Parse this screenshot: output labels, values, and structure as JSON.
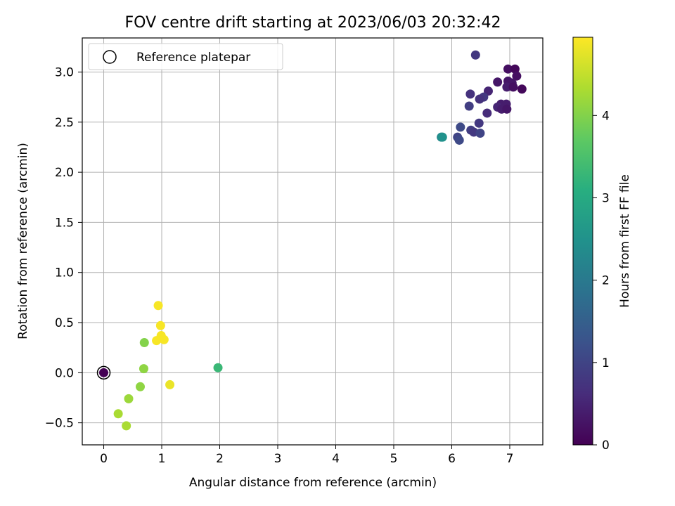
{
  "chart_data": {
    "type": "scatter",
    "title": "FOV centre drift starting at 2023/06/03 20:32:42",
    "xlabel": "Angular distance from reference (arcmin)",
    "ylabel": "Rotation from reference (arcmin)",
    "xlim": [
      -0.37,
      7.57
    ],
    "ylim": [
      -0.72,
      3.34
    ],
    "xticks": [
      0,
      1,
      2,
      3,
      4,
      5,
      6,
      7
    ],
    "xtick_labels": [
      "0",
      "1",
      "2",
      "3",
      "4",
      "5",
      "6",
      "7"
    ],
    "yticks": [
      -0.5,
      0.0,
      0.5,
      1.0,
      1.5,
      2.0,
      2.5,
      3.0
    ],
    "ytick_labels": [
      "−0.5",
      "0.0",
      "0.5",
      "1.0",
      "1.5",
      "2.0",
      "2.5",
      "3.0"
    ],
    "grid": true,
    "legend": {
      "placement": "top-left",
      "label": "Reference platepar"
    },
    "reference_point": {
      "x": 0,
      "y": 0
    },
    "colorbar": {
      "label": "Hours from first FF file",
      "colormap": "viridis",
      "range": [
        0,
        4.95
      ],
      "ticks": [
        0,
        1,
        2,
        3,
        4
      ],
      "tick_labels": [
        "0",
        "1",
        "2",
        "3",
        "4"
      ]
    },
    "points": [
      {
        "x": 0,
        "y": 0,
        "c": 0
      },
      {
        "x": 6.41,
        "y": 3.17,
        "c": 0.8
      },
      {
        "x": 6.97,
        "y": 3.03,
        "c": 0.2
      },
      {
        "x": 7.09,
        "y": 3.03,
        "c": 0.1
      },
      {
        "x": 7.12,
        "y": 2.96,
        "c": 0.2
      },
      {
        "x": 6.97,
        "y": 2.91,
        "c": 0.3
      },
      {
        "x": 7.04,
        "y": 2.89,
        "c": 0.3
      },
      {
        "x": 6.79,
        "y": 2.9,
        "c": 0.3
      },
      {
        "x": 6.95,
        "y": 2.85,
        "c": 0.4
      },
      {
        "x": 7.06,
        "y": 2.85,
        "c": 0.2
      },
      {
        "x": 7.21,
        "y": 2.83,
        "c": 0.1
      },
      {
        "x": 6.63,
        "y": 2.81,
        "c": 0.5
      },
      {
        "x": 6.32,
        "y": 2.78,
        "c": 0.7
      },
      {
        "x": 6.55,
        "y": 2.75,
        "c": 0.8
      },
      {
        "x": 6.48,
        "y": 2.73,
        "c": 0.7
      },
      {
        "x": 6.3,
        "y": 2.66,
        "c": 0.9
      },
      {
        "x": 6.85,
        "y": 2.68,
        "c": 0.4
      },
      {
        "x": 6.94,
        "y": 2.68,
        "c": 0.4
      },
      {
        "x": 6.79,
        "y": 2.65,
        "c": 0.5
      },
      {
        "x": 6.86,
        "y": 2.63,
        "c": 0.4
      },
      {
        "x": 6.95,
        "y": 2.63,
        "c": 0.3
      },
      {
        "x": 6.61,
        "y": 2.59,
        "c": 0.6
      },
      {
        "x": 6.47,
        "y": 2.49,
        "c": 0.8
      },
      {
        "x": 6.15,
        "y": 2.45,
        "c": 1.1
      },
      {
        "x": 6.33,
        "y": 2.42,
        "c": 0.9
      },
      {
        "x": 6.38,
        "y": 2.4,
        "c": 0.8
      },
      {
        "x": 6.49,
        "y": 2.39,
        "c": 1.0
      },
      {
        "x": 6.1,
        "y": 2.35,
        "c": 1.0
      },
      {
        "x": 6.13,
        "y": 2.32,
        "c": 1.1
      },
      {
        "x": 5.82,
        "y": 2.35,
        "c": 2.3
      },
      {
        "x": 5.84,
        "y": 2.35,
        "c": 2.5
      },
      {
        "x": 1.97,
        "y": 0.05,
        "c": 3.3
      },
      {
        "x": 0.7,
        "y": 0.3,
        "c": 4.0
      },
      {
        "x": 0.69,
        "y": 0.04,
        "c": 4.1
      },
      {
        "x": 0.63,
        "y": -0.14,
        "c": 4.1
      },
      {
        "x": 0.43,
        "y": -0.26,
        "c": 4.2
      },
      {
        "x": 0.25,
        "y": -0.41,
        "c": 4.3
      },
      {
        "x": 0.39,
        "y": -0.53,
        "c": 4.3
      },
      {
        "x": 0.94,
        "y": 0.67,
        "c": 4.9
      },
      {
        "x": 0.98,
        "y": 0.47,
        "c": 4.9
      },
      {
        "x": 0.99,
        "y": 0.37,
        "c": 4.9
      },
      {
        "x": 0.91,
        "y": 0.32,
        "c": 4.9
      },
      {
        "x": 1.04,
        "y": 0.33,
        "c": 4.9
      },
      {
        "x": 1.14,
        "y": -0.12,
        "c": 4.8
      }
    ]
  }
}
